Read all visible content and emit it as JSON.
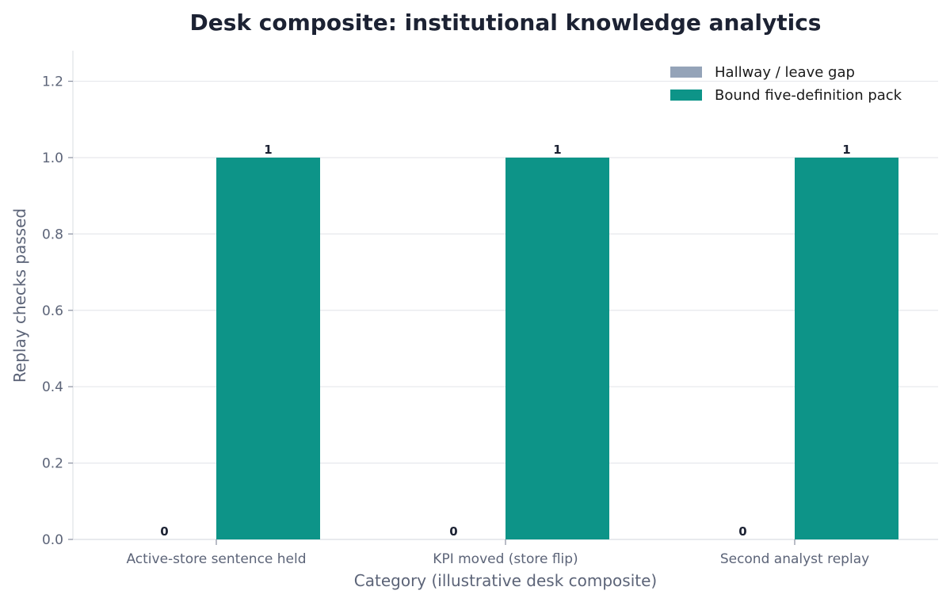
{
  "chart_data": {
    "type": "bar",
    "title": "Desk composite: institutional knowledge analytics",
    "xlabel": "Category (illustrative desk composite)",
    "ylabel": "Replay checks passed",
    "categories": [
      "Active-store sentence held",
      "KPI moved (store flip)",
      "Second analyst replay"
    ],
    "series": [
      {
        "name": "Hallway / leave gap",
        "values": [
          0,
          0,
          0
        ],
        "color": "#94a3b8",
        "data_labels": [
          "0",
          "0",
          "0"
        ]
      },
      {
        "name": "Bound five-definition pack",
        "values": [
          1,
          1,
          1
        ],
        "color": "#0d9488",
        "data_labels": [
          "1",
          "1",
          "1"
        ]
      }
    ],
    "ylim": [
      0,
      1.28
    ],
    "yticks": [
      0.0,
      0.2,
      0.4,
      0.6,
      0.8,
      1.0,
      1.2
    ],
    "ytick_labels": [
      "0.0",
      "0.2",
      "0.4",
      "0.6",
      "0.8",
      "1.0",
      "1.2"
    ],
    "grid": "y",
    "legend_position": "top-right"
  }
}
